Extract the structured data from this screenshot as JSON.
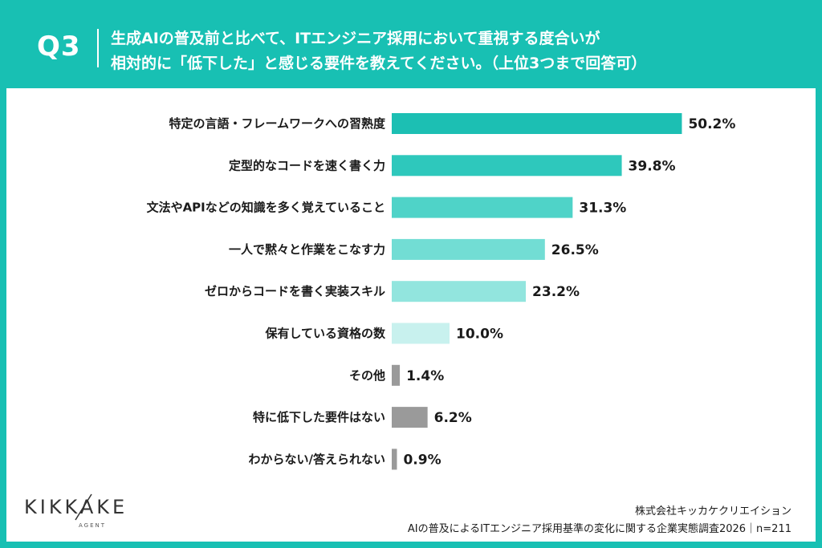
{
  "header": {
    "q_number": "Q3",
    "question_line1": "生成AIの普及前と比べて、ITエンジニア採用において重視する度合いが",
    "question_line2": "相対的に「低下した」と感じる要件を教えてください。（上位3つまで回答可）"
  },
  "chart_data": {
    "type": "bar",
    "orientation": "horizontal",
    "title": "",
    "xlabel": "",
    "ylabel": "",
    "xlim": [
      0,
      60
    ],
    "grid": false,
    "categories": [
      "特定の言語・フレームワークへの習熟度",
      "定型的なコードを速く書く力",
      "文法やAPIなどの知識を多く覚えていること",
      "一人で黙々と作業をこなす力",
      "ゼロからコードを書く実装スキル",
      "保有している資格の数",
      "その他",
      "特に低下した要件はない",
      "わからない/答えられない"
    ],
    "values": [
      50.2,
      39.8,
      31.3,
      26.5,
      23.2,
      10.0,
      1.4,
      6.2,
      0.9
    ],
    "value_labels": [
      "50.2%",
      "39.8%",
      "31.3%",
      "26.5%",
      "23.2%",
      "10.0%",
      "1.4%",
      "6.2%",
      "0.9%"
    ],
    "bar_colors": [
      "#1cbfb3",
      "#2ec8bc",
      "#4fd3c8",
      "#72ddd4",
      "#92e5de",
      "#c8f1ee",
      "#9a9a9a",
      "#9a9a9a",
      "#9a9a9a"
    ]
  },
  "footer": {
    "logo_text": "KIKKAKE",
    "logo_sub": "AGENT",
    "company": "株式会社キッカケクリエイション",
    "survey": "AIの普及によるITエンジニア採用基準の変化に関する企業実態調査2026｜n=211"
  }
}
